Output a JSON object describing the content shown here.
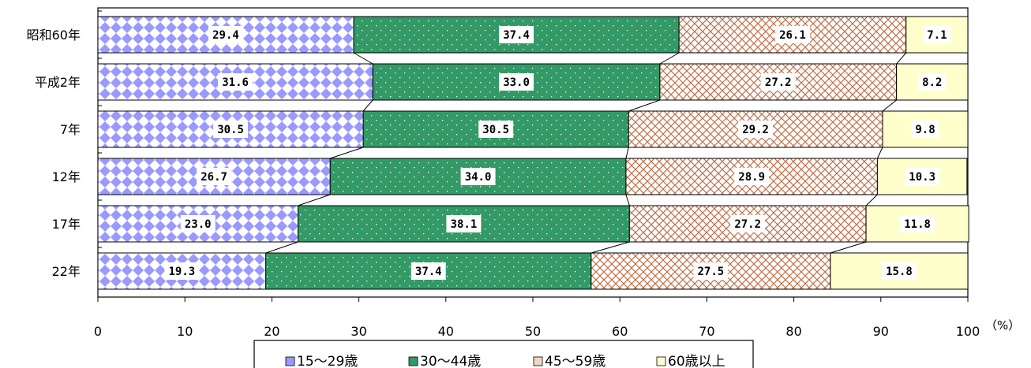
{
  "chart_data": {
    "type": "bar",
    "orientation": "horizontal",
    "stacked": true,
    "categories": [
      "昭和60年",
      "平成2年",
      "7年",
      "12年",
      "17年",
      "22年"
    ],
    "series": [
      {
        "name": "15～29歳",
        "values": [
          29.4,
          31.6,
          30.5,
          26.7,
          23.0,
          19.3
        ]
      },
      {
        "name": "30～44歳",
        "values": [
          37.4,
          33.0,
          30.5,
          34.0,
          38.1,
          37.4
        ]
      },
      {
        "name": "45～59歳",
        "values": [
          26.1,
          27.2,
          29.2,
          28.9,
          27.2,
          27.5
        ]
      },
      {
        "name": "60歳以上",
        "values": [
          7.1,
          8.2,
          9.8,
          10.3,
          11.8,
          15.8
        ]
      }
    ],
    "xlim": [
      0,
      100
    ],
    "xticks": [
      "0",
      "10",
      "20",
      "30",
      "40",
      "50",
      "60",
      "70",
      "80",
      "90",
      "100"
    ],
    "x_unit": "（%）",
    "gridlines": false,
    "series_connector_lines": true,
    "legend_position": "bottom",
    "colors": {
      "s1_fill": "#ffffff",
      "s1_pattern": "#9999ff",
      "s2_fill": "#339966",
      "s2_pattern": "#ffffff",
      "s3_fill": "#ffffff",
      "s3_pattern": "#c0704a",
      "s4_fill": "#ffffcc"
    }
  }
}
